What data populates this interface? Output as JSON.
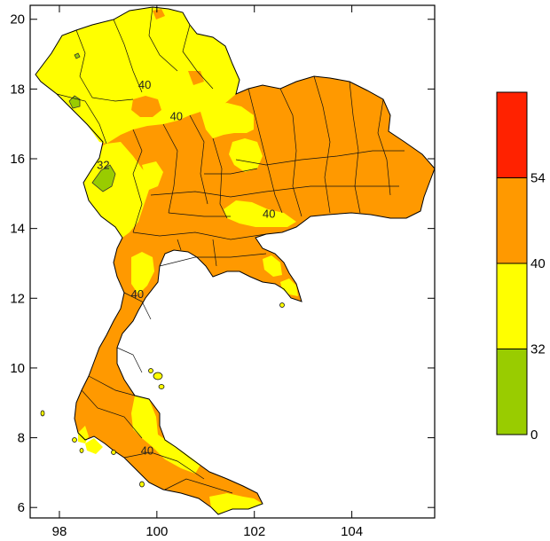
{
  "chart_data": {
    "type": "filled-contour-map",
    "title": "",
    "xlabel": "",
    "ylabel": "",
    "xlim": [
      97.4,
      105.7
    ],
    "ylim": [
      5.7,
      20.4
    ],
    "x_ticks": [
      98,
      100,
      102,
      104
    ],
    "y_ticks": [
      6,
      8,
      10,
      12,
      14,
      16,
      18,
      20
    ],
    "contour_labels": [
      {
        "text": "40",
        "lon": 99.75,
        "lat": 18.1
      },
      {
        "text": "40",
        "lon": 100.4,
        "lat": 17.2
      },
      {
        "text": "32",
        "lon": 98.9,
        "lat": 15.8
      },
      {
        "text": "40",
        "lon": 102.3,
        "lat": 14.4
      },
      {
        "text": "40",
        "lon": 99.6,
        "lat": 12.1
      },
      {
        "text": "40",
        "lon": 99.8,
        "lat": 7.6
      }
    ],
    "legend": {
      "position": "right",
      "levels": [
        {
          "range": [
            0,
            32
          ],
          "color": "#99cc00"
        },
        {
          "range": [
            32,
            40
          ],
          "color": "#ffff00"
        },
        {
          "range": [
            40,
            54
          ],
          "color": "#ff9900"
        },
        {
          "range": [
            54,
            null
          ],
          "color": "#ff2200"
        }
      ],
      "tick_labels": [
        "0",
        "32",
        "40",
        "54"
      ]
    }
  }
}
